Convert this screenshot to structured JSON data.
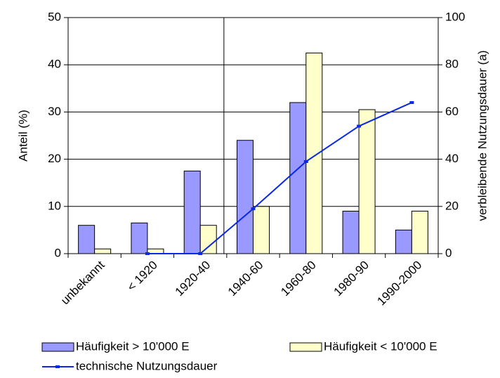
{
  "chart_data": {
    "type": "bar",
    "y_label": "Anteil (%)",
    "y2_label": "verbleibende Nutzungsdauer (a)",
    "categories": [
      "unbekannt",
      "< 1920",
      "1920-40",
      "1940-60",
      "1960-80",
      "1980-90",
      "1990-2000"
    ],
    "series": [
      {
        "name": "Häufigkeit > 10'000 E",
        "color": "#9999ff",
        "values": [
          6,
          6.5,
          17.5,
          24,
          32,
          9,
          5
        ]
      },
      {
        "name": "Häufigkeit < 10'000 E",
        "color": "#ffffcc",
        "values": [
          1,
          1,
          6,
          10,
          42.5,
          30.5,
          9
        ]
      },
      {
        "name": "technische Nutzungsdauer",
        "color": "#0a28e6",
        "type": "line",
        "axis": "y2",
        "values": [
          null,
          0,
          0,
          19,
          39,
          54,
          64
        ]
      }
    ],
    "ylim": [
      0,
      50
    ],
    "yticks": [
      0,
      10,
      20,
      30,
      40,
      50
    ],
    "y2lim": [
      0,
      100
    ],
    "y2ticks": [
      0,
      20,
      40,
      60,
      80,
      100
    ],
    "grid": true
  }
}
